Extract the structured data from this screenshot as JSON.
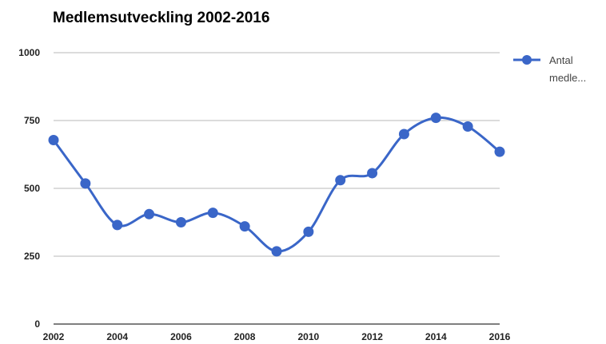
{
  "chart_data": {
    "type": "line",
    "title": "Medlemsutveckling 2002-2016",
    "xlabel": "",
    "ylabel": "",
    "x": [
      2002,
      2003,
      2004,
      2005,
      2006,
      2007,
      2008,
      2009,
      2010,
      2011,
      2012,
      2013,
      2014,
      2015,
      2016
    ],
    "x_tick_labels": [
      "2002",
      "2004",
      "2006",
      "2008",
      "2010",
      "2012",
      "2014",
      "2016"
    ],
    "x_tick_values": [
      2002,
      2004,
      2006,
      2008,
      2010,
      2012,
      2014,
      2016
    ],
    "y_tick_labels": [
      "0",
      "250",
      "500",
      "750",
      "1000"
    ],
    "y_tick_values": [
      0,
      250,
      500,
      750,
      1000
    ],
    "ylim": [
      0,
      1000
    ],
    "xlim": [
      2002,
      2016
    ],
    "grid": true,
    "legend_position": "right",
    "series": [
      {
        "name": "Antal medle...",
        "legend_line1": "Antal",
        "legend_line2": "medle...",
        "color": "#3a66c8",
        "values": [
          678,
          518,
          365,
          405,
          375,
          410,
          360,
          268,
          340,
          530,
          556,
          700,
          760,
          728,
          635
        ]
      }
    ]
  }
}
